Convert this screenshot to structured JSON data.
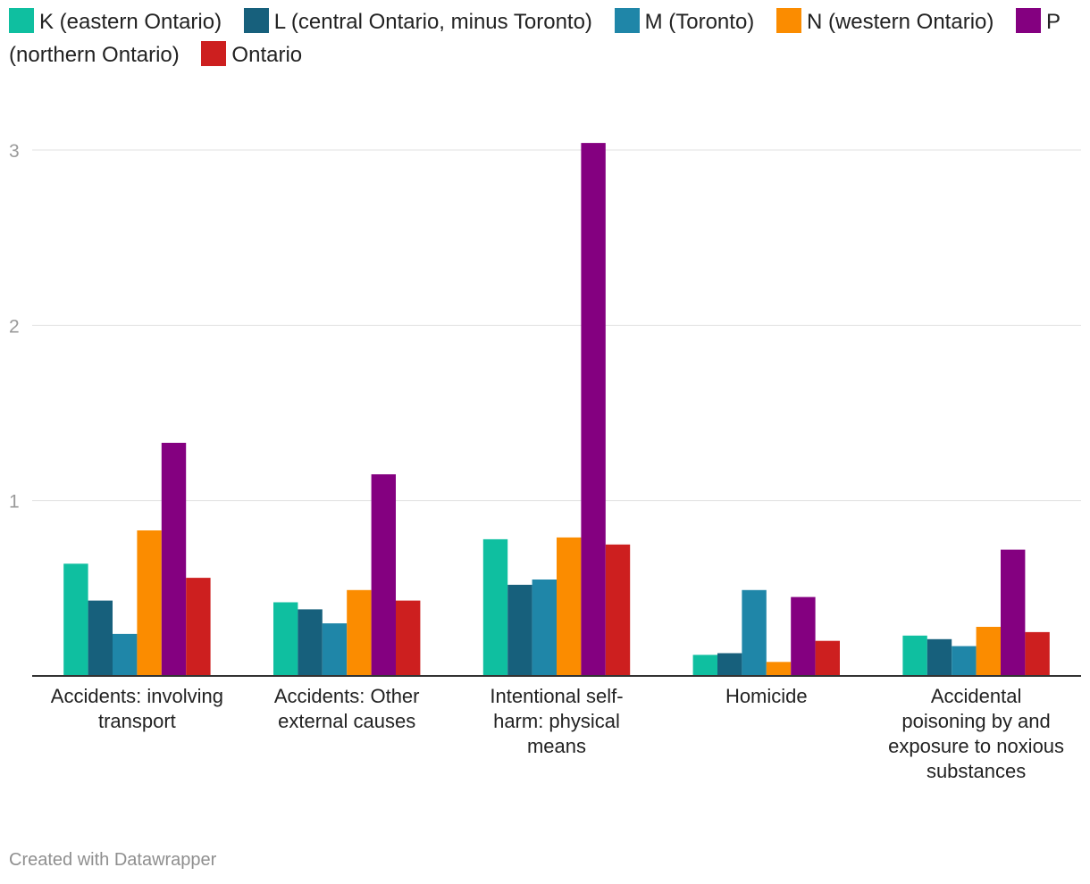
{
  "chart_data": {
    "type": "bar",
    "title": "",
    "xlabel": "",
    "ylabel": "",
    "ylim": [
      0,
      3
    ],
    "yticks": [
      1,
      2,
      3
    ],
    "grid": true,
    "legend_position": "top",
    "categories": [
      "Accidents: involving transport",
      "Accidents: Other external causes",
      "Intentional self-harm: physical means",
      "Homicide",
      "Accidental poisoning by and exposure to noxious substances"
    ],
    "series": [
      {
        "name": "K (eastern Ontario)",
        "color": "#0fbfa0",
        "values": [
          0.64,
          0.42,
          0.78,
          0.12,
          0.23
        ]
      },
      {
        "name": "L (central Ontario, minus Toronto)",
        "color": "#17607c",
        "values": [
          0.43,
          0.38,
          0.52,
          0.13,
          0.21
        ]
      },
      {
        "name": "M (Toronto)",
        "color": "#1f86a8",
        "values": [
          0.24,
          0.3,
          0.55,
          0.49,
          0.17
        ]
      },
      {
        "name": "N (western Ontario)",
        "color": "#fb8c00",
        "values": [
          0.83,
          0.49,
          0.79,
          0.08,
          0.28
        ]
      },
      {
        "name": "P (northern Ontario)",
        "color": "#840080",
        "values": [
          1.33,
          1.15,
          3.04,
          0.45,
          0.72
        ]
      },
      {
        "name": "Ontario",
        "color": "#cd1f1f",
        "values": [
          0.56,
          0.43,
          0.75,
          0.2,
          0.25
        ]
      }
    ]
  },
  "footer": {
    "credit": "Created with Datawrapper"
  }
}
